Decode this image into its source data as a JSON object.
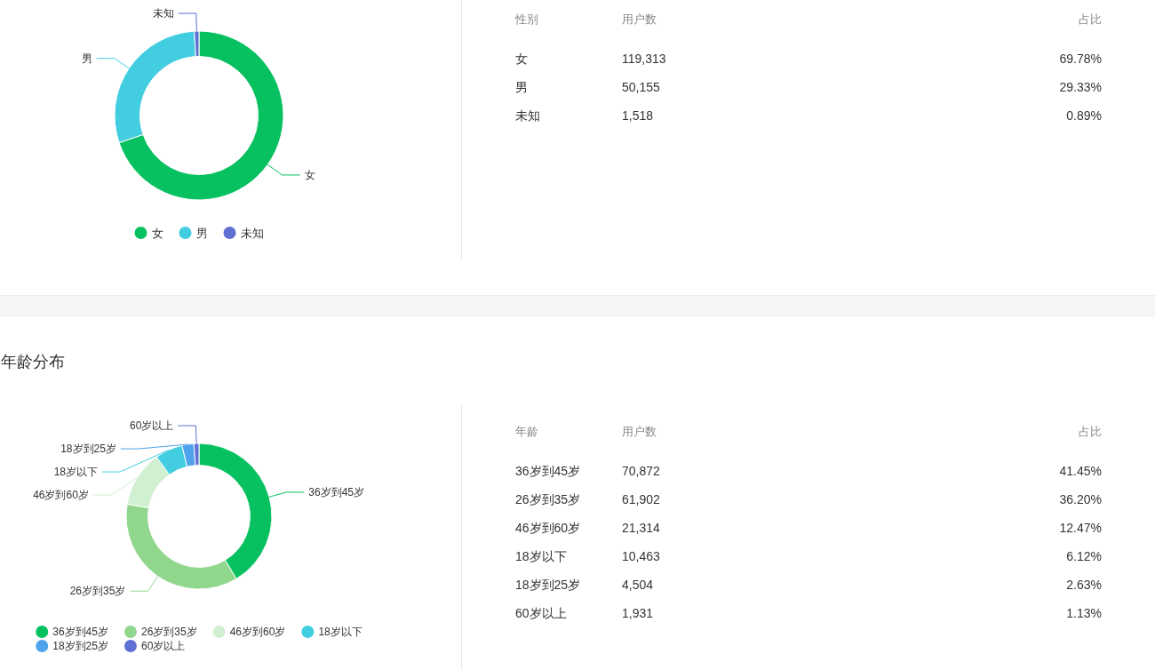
{
  "chart_data": [
    {
      "type": "donut",
      "categories": [
        "女",
        "男",
        "未知"
      ],
      "values": [
        69.78,
        29.33,
        0.89
      ],
      "colors": [
        "#07c160",
        "#42cde1",
        "#5f70d4"
      ],
      "legend": "bottom"
    },
    {
      "type": "other",
      "annotations": [
        "性别",
        "用户数",
        "占比",
        "女",
        "119,313",
        "69.78%",
        "男",
        "50,155",
        "29.33%",
        "未知",
        "1,518",
        "0.89%"
      ]
    },
    {
      "type": "donut",
      "title": "年龄分布",
      "categories": [
        "36岁到45岁",
        "26岁到35岁",
        "46岁到60岁",
        "18岁以下",
        "18岁到25岁",
        "60岁以上"
      ],
      "values": [
        41.45,
        36.2,
        12.47,
        6.12,
        2.63,
        1.13
      ],
      "colors": [
        "#07c160",
        "#91d68d",
        "#d1f0d1",
        "#42cde1",
        "#4fa3ea",
        "#5f70d4"
      ],
      "legend": "bottom"
    },
    {
      "type": "other",
      "annotations": [
        "年龄",
        "用户数",
        "占比",
        "36岁到45岁",
        "70,872",
        "41.45%",
        "26岁到35岁",
        "61,902",
        "36.20%",
        "46岁到60岁",
        "21,314",
        "12.47%",
        "18岁以下",
        "10,463",
        "6.12%",
        "18岁到25岁",
        "4,504",
        "2.63%",
        "60岁以上",
        "1,931",
        "1.13%"
      ]
    }
  ]
}
